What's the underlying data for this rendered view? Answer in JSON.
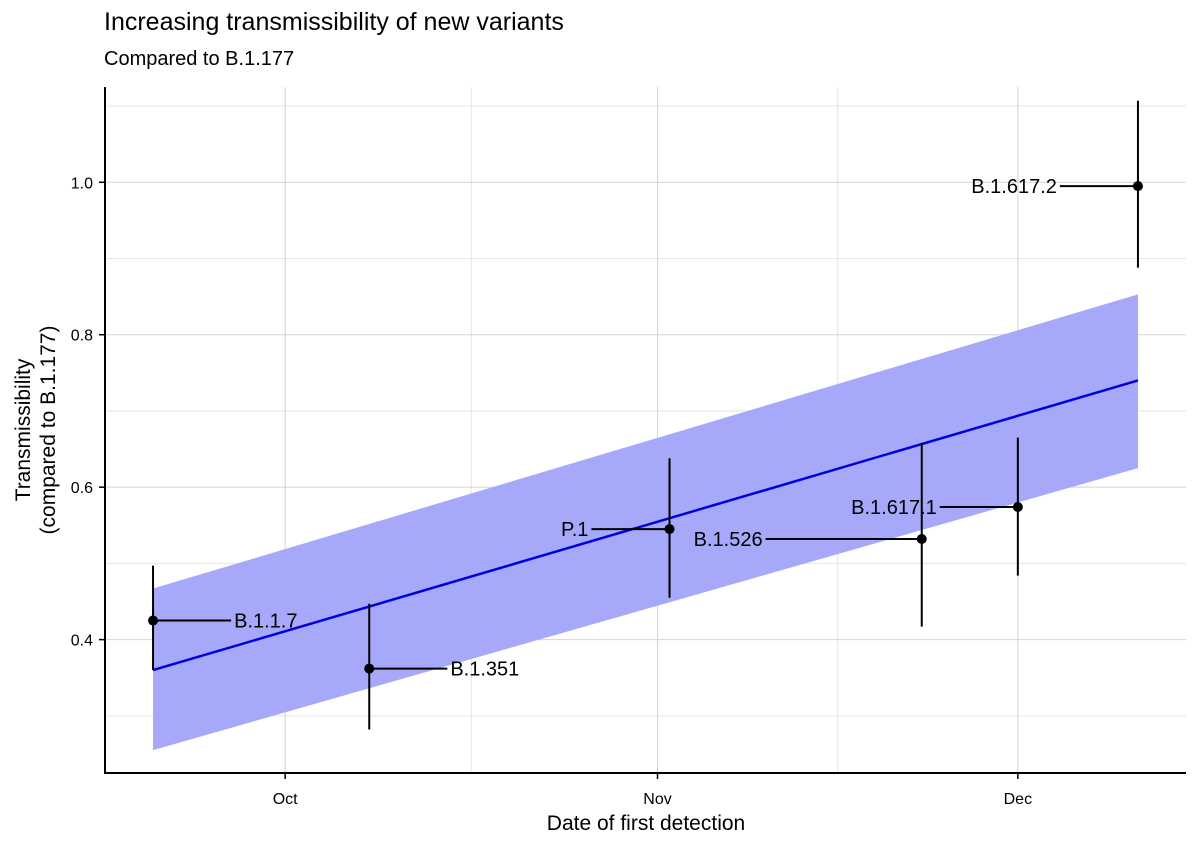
{
  "chart_data": {
    "type": "scatter",
    "title": "Increasing transmissibility of new variants",
    "subtitle": "Compared to B.1.177",
    "xlabel": "Date of first detection",
    "ylabel": [
      "Transmissibility",
      "(compared to B.1.177)"
    ],
    "x_unit": "days since Oct 1",
    "xlim": [
      -15,
      75
    ],
    "ylim": [
      0.225,
      1.125
    ],
    "x_ticks": [
      {
        "label": "Oct",
        "value": 0
      },
      {
        "label": "Nov",
        "value": 31
      },
      {
        "label": "Dec",
        "value": 61
      }
    ],
    "x_minor_gridlines": [
      15.5,
      46
    ],
    "y_ticks": [
      {
        "label": "0.4",
        "value": 0.4
      },
      {
        "label": "0.6",
        "value": 0.6
      },
      {
        "label": "0.8",
        "value": 0.8
      },
      {
        "label": "1.0",
        "value": 1.0
      }
    ],
    "y_minor_gridlines": [
      0.3,
      0.5,
      0.7,
      0.9,
      1.1
    ],
    "grid": true,
    "trend": {
      "color": "#0000dd",
      "band_color": "#a6a8fa",
      "x_start": -11,
      "x_end": 71,
      "line": [
        0.36,
        0.74
      ],
      "band_lower": [
        0.255,
        0.625
      ],
      "band_upper": [
        0.467,
        0.853
      ]
    },
    "points": [
      {
        "label": "B.1.1.7",
        "x": -11,
        "y": 0.425,
        "ci": [
          0.36,
          0.497
        ],
        "label_side": "right",
        "label_offset": 6.5
      },
      {
        "label": "B.1.351",
        "x": 7,
        "y": 0.362,
        "ci": [
          0.282,
          0.447
        ],
        "label_side": "right",
        "label_offset": 6.5
      },
      {
        "label": "P.1",
        "x": 32,
        "y": 0.545,
        "ci": [
          0.455,
          0.638
        ],
        "label_side": "left",
        "label_offset": 6.5
      },
      {
        "label": "B.1.526",
        "x": 53,
        "y": 0.532,
        "ci": [
          0.417,
          0.658
        ],
        "label_side": "left",
        "label_offset": 13
      },
      {
        "label": "B.1.617.1",
        "x": 61,
        "y": 0.574,
        "ci": [
          0.484,
          0.665
        ],
        "label_side": "left",
        "label_offset": 6.5
      },
      {
        "label": "B.1.617.2",
        "x": 71,
        "y": 0.995,
        "ci": [
          0.888,
          1.107
        ],
        "label_side": "left",
        "label_offset": 6.5
      }
    ]
  }
}
